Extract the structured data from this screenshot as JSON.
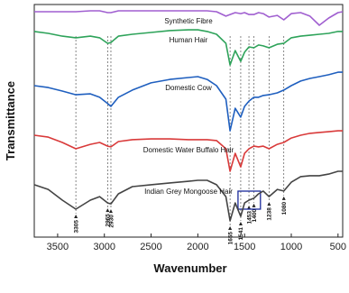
{
  "chart_data": {
    "type": "line",
    "x_label": "Wavenumber",
    "y_label": "Transmittance",
    "xlim": [
      3750,
      450
    ],
    "xticks": [
      3500,
      3000,
      2500,
      2000,
      1500,
      1000,
      500
    ],
    "ylim": [
      0,
      100
    ],
    "x": [
      3750,
      3600,
      3450,
      3305,
      3150,
      3050,
      2965,
      2930,
      2850,
      2700,
      2500,
      2300,
      2100,
      2000,
      1900,
      1800,
      1700,
      1655,
      1600,
      1541,
      1500,
      1453,
      1400,
      1350,
      1300,
      1238,
      1150,
      1080,
      1000,
      900,
      800,
      700,
      600,
      500,
      450
    ],
    "series": [
      {
        "name": "Synthetic Fibre",
        "color": "#a05fd0",
        "values": [
          96.9,
          96.9,
          96.9,
          96.9,
          97.3,
          97.3,
          96.5,
          96.5,
          97.3,
          97.3,
          97.3,
          97.3,
          97.3,
          97.3,
          97.3,
          96.9,
          95.0,
          95.7,
          96.5,
          96.1,
          96.5,
          95.7,
          95.7,
          96.5,
          96.1,
          94.6,
          95.3,
          93.4,
          96.1,
          96.5,
          95.0,
          91.1,
          94.2,
          96.5,
          96.9
        ]
      },
      {
        "name": "Human Hair",
        "color": "#2ea35a",
        "values": [
          88.4,
          87.6,
          86.4,
          85.7,
          86.4,
          85.7,
          83.3,
          83.7,
          86.4,
          87.2,
          88.0,
          88.8,
          89.1,
          89.1,
          88.4,
          87.2,
          83.3,
          74.0,
          80.2,
          75.6,
          79.5,
          81.8,
          81.4,
          82.6,
          82.2,
          81.4,
          82.9,
          83.3,
          85.7,
          86.4,
          86.8,
          87.2,
          87.6,
          88.4,
          88.4
        ]
      },
      {
        "name": "Domestic Cow",
        "color": "#1f5fbf",
        "values": [
          65.1,
          64.3,
          62.8,
          61.2,
          61.6,
          60.1,
          57.4,
          56.2,
          60.1,
          63.2,
          66.3,
          67.8,
          68.6,
          69.0,
          67.8,
          65.1,
          59.3,
          45.7,
          55.4,
          51.6,
          56.2,
          58.5,
          60.1,
          60.1,
          60.9,
          61.2,
          62.0,
          63.2,
          65.1,
          67.1,
          68.2,
          69.0,
          69.8,
          70.9,
          70.9
        ]
      },
      {
        "name": "Domestic Water Buffalo Hair",
        "color": "#d93a3a",
        "values": [
          43.8,
          43.0,
          40.7,
          38.0,
          39.9,
          40.7,
          39.1,
          38.8,
          41.1,
          41.9,
          42.2,
          42.2,
          41.9,
          41.9,
          41.9,
          41.5,
          38.0,
          28.3,
          36.0,
          30.2,
          36.0,
          38.0,
          39.1,
          38.8,
          39.1,
          38.0,
          39.9,
          40.7,
          42.6,
          43.8,
          44.6,
          45.0,
          45.3,
          45.7,
          45.7
        ]
      },
      {
        "name": "Indian Grey Mongoose Hair",
        "color": "#444444",
        "values": [
          22.5,
          20.5,
          15.9,
          12.0,
          15.9,
          17.4,
          14.7,
          14.3,
          18.6,
          21.7,
          22.5,
          23.3,
          24.0,
          24.4,
          24.4,
          22.5,
          17.4,
          7.0,
          14.7,
          8.9,
          14.7,
          15.9,
          16.7,
          18.6,
          19.8,
          17.4,
          20.5,
          19.8,
          23.6,
          26.0,
          26.4,
          26.4,
          27.1,
          28.3,
          28.3
        ]
      }
    ],
    "peaks": [
      3305,
      2965,
      2930,
      1655,
      1541,
      1453,
      1400,
      1238,
      1080
    ]
  }
}
